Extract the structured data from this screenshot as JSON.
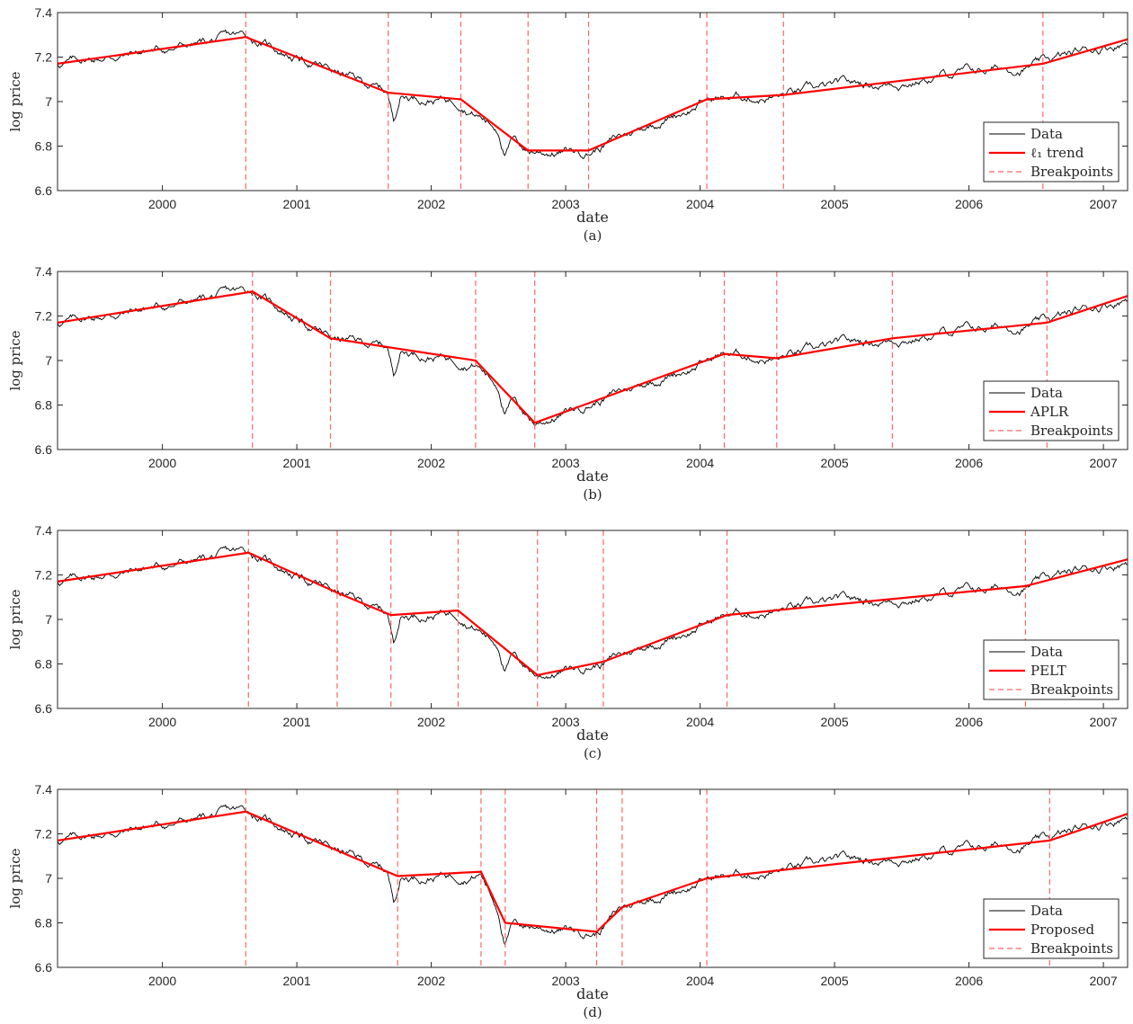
{
  "chart_data": [
    {
      "type": "line",
      "panel_label": "(a)",
      "xlabel": "date",
      "ylabel": "log price",
      "xlim": [
        1999.22,
        2007.18
      ],
      "ylim": [
        6.6,
        7.4
      ],
      "x_ticks": [
        2000,
        2001,
        2002,
        2003,
        2004,
        2005,
        2006,
        2007
      ],
      "x_tick_labels": [
        "2000",
        "2001",
        "2002",
        "2003",
        "2004",
        "2005",
        "2006",
        "2007"
      ],
      "y_ticks": [
        6.6,
        6.8,
        7.0,
        7.2,
        7.4
      ],
      "y_tick_labels": [
        "6.6",
        "6.8",
        "7",
        "7.2",
        "7.4"
      ],
      "legend": {
        "position": "lower-right",
        "entries": [
          "Data",
          "ℓ₁ trend",
          "Breakpoints"
        ]
      },
      "series": [
        {
          "name": "ℓ₁ trend",
          "color": "#ff0000",
          "x": [
            1999.22,
            2000.62,
            2001.68,
            2002.22,
            2002.72,
            2003.17,
            2004.05,
            2004.62,
            2006.55,
            2007.18
          ],
          "y": [
            7.17,
            7.29,
            7.04,
            7.01,
            6.78,
            6.78,
            7.01,
            7.03,
            7.17,
            7.28
          ]
        }
      ],
      "breakpoints": [
        2000.62,
        2001.68,
        2002.22,
        2002.72,
        2003.17,
        2004.05,
        2004.62,
        2006.55
      ]
    },
    {
      "type": "line",
      "panel_label": "(b)",
      "xlabel": "date",
      "ylabel": "log price",
      "xlim": [
        1999.22,
        2007.18
      ],
      "ylim": [
        6.6,
        7.4
      ],
      "x_ticks": [
        2000,
        2001,
        2002,
        2003,
        2004,
        2005,
        2006,
        2007
      ],
      "x_tick_labels": [
        "2000",
        "2001",
        "2002",
        "2003",
        "2004",
        "2005",
        "2006",
        "2007"
      ],
      "y_ticks": [
        6.6,
        6.8,
        7.0,
        7.2,
        7.4
      ],
      "y_tick_labels": [
        "6.6",
        "6.8",
        "7",
        "7.2",
        "7.4"
      ],
      "legend": {
        "position": "lower-right",
        "entries": [
          "Data",
          "APLR",
          "Breakpoints"
        ]
      },
      "series": [
        {
          "name": "APLR",
          "color": "#ff0000",
          "x": [
            1999.22,
            2000.67,
            2001.25,
            2002.33,
            2002.77,
            2004.18,
            2004.57,
            2005.43,
            2006.58,
            2007.18
          ],
          "y": [
            7.17,
            7.31,
            7.1,
            7.0,
            6.72,
            7.03,
            7.01,
            7.1,
            7.17,
            7.29
          ]
        }
      ],
      "breakpoints": [
        2000.67,
        2001.25,
        2002.33,
        2002.77,
        2004.18,
        2004.57,
        2005.43,
        2006.58
      ]
    },
    {
      "type": "line",
      "panel_label": "(c)",
      "xlabel": "date",
      "ylabel": "log price",
      "xlim": [
        1999.22,
        2007.18
      ],
      "ylim": [
        6.6,
        7.4
      ],
      "x_ticks": [
        2000,
        2001,
        2002,
        2003,
        2004,
        2005,
        2006,
        2007
      ],
      "x_tick_labels": [
        "2000",
        "2001",
        "2002",
        "2003",
        "2004",
        "2005",
        "2006",
        "2007"
      ],
      "y_ticks": [
        6.6,
        6.8,
        7.0,
        7.2,
        7.4
      ],
      "y_tick_labels": [
        "6.6",
        "6.8",
        "7",
        "7.2",
        "7.4"
      ],
      "legend": {
        "position": "lower-right",
        "entries": [
          "Data",
          "PELT",
          "Breakpoints"
        ]
      },
      "series": [
        {
          "name": "PELT",
          "color": "#ff0000",
          "x": [
            1999.22,
            2000.64,
            2001.3,
            2001.7,
            2002.2,
            2002.79,
            2003.28,
            2004.2,
            2006.42,
            2007.18
          ],
          "y": [
            7.17,
            7.3,
            7.12,
            7.02,
            7.04,
            6.75,
            6.81,
            7.02,
            7.15,
            7.27
          ]
        }
      ],
      "breakpoints": [
        2000.64,
        2001.3,
        2001.7,
        2002.2,
        2002.79,
        2003.28,
        2004.2,
        2006.42
      ]
    },
    {
      "type": "line",
      "panel_label": "(d)",
      "xlabel": "date",
      "ylabel": "log price",
      "xlim": [
        1999.22,
        2007.18
      ],
      "ylim": [
        6.6,
        7.4
      ],
      "x_ticks": [
        2000,
        2001,
        2002,
        2003,
        2004,
        2005,
        2006,
        2007
      ],
      "x_tick_labels": [
        "2000",
        "2001",
        "2002",
        "2003",
        "2004",
        "2005",
        "2006",
        "2007"
      ],
      "y_ticks": [
        6.6,
        6.8,
        7.0,
        7.2,
        7.4
      ],
      "y_tick_labels": [
        "6.6",
        "6.8",
        "7",
        "7.2",
        "7.4"
      ],
      "legend": {
        "position": "lower-right",
        "entries": [
          "Data",
          "Proposed",
          "Breakpoints"
        ]
      },
      "series": [
        {
          "name": "Proposed",
          "color": "#ff0000",
          "x": [
            1999.22,
            2000.62,
            2001.75,
            2002.37,
            2002.55,
            2003.23,
            2003.42,
            2004.05,
            2006.6,
            2007.18
          ],
          "y": [
            7.17,
            7.3,
            7.01,
            7.03,
            6.8,
            6.76,
            6.87,
            7.0,
            7.17,
            7.29
          ]
        }
      ],
      "breakpoints": [
        2000.62,
        2001.75,
        2002.37,
        2002.55,
        2003.23,
        2003.42,
        2004.05,
        2006.6
      ]
    }
  ],
  "data_series_color": "#000000",
  "breakpoint_color": "#ff6666",
  "trend_color": "#ff0000"
}
